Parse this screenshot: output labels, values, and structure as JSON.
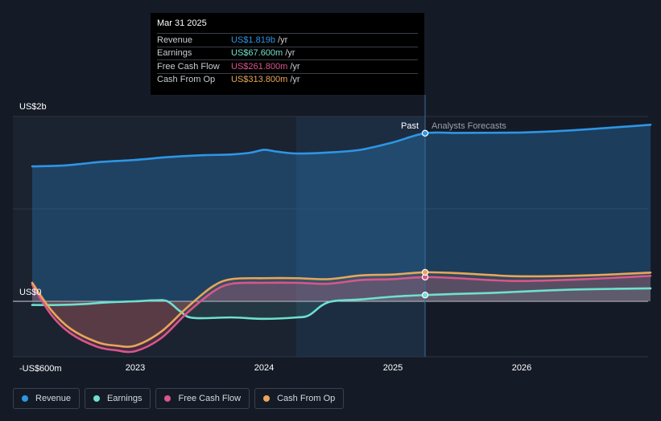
{
  "tooltip": {
    "date": "Mar 31 2025",
    "rows": [
      {
        "label": "Revenue",
        "value": "US$1.819b",
        "unit": "/yr",
        "color": "#2d96e6"
      },
      {
        "label": "Earnings",
        "value": "US$67.600m",
        "unit": "/yr",
        "color": "#6fe0cf"
      },
      {
        "label": "Free Cash Flow",
        "value": "US$261.800m",
        "unit": "/yr",
        "color": "#d9568a"
      },
      {
        "label": "Cash From Op",
        "value": "US$313.800m",
        "unit": "/yr",
        "color": "#e8a65a"
      }
    ]
  },
  "markers": {
    "past": "Past",
    "forecast": "Analysts Forecasts"
  },
  "legend": [
    {
      "label": "Revenue",
      "color": "#2d96e6"
    },
    {
      "label": "Earnings",
      "color": "#6fe0cf"
    },
    {
      "label": "Free Cash Flow",
      "color": "#d9568a"
    },
    {
      "label": "Cash From Op",
      "color": "#e8a65a"
    }
  ],
  "chart_data": {
    "type": "line",
    "title": "",
    "units": "US$ millions",
    "ylim": [
      -600,
      2000
    ],
    "y_tick_labels": [
      {
        "value": 2000,
        "label": "US$2b"
      },
      {
        "value": 0,
        "label": "US$0"
      },
      {
        "value": -600,
        "label": "-US$600m"
      }
    ],
    "xlim": [
      2022.0,
      2027.0
    ],
    "x_tick_labels": [
      {
        "value": 2023,
        "label": "2023"
      },
      {
        "value": 2024,
        "label": "2024"
      },
      {
        "value": 2025,
        "label": "2025"
      },
      {
        "value": 2026,
        "label": "2026"
      }
    ],
    "highlight_range": [
      2024.25,
      2025.25
    ],
    "past_end": 2025.25,
    "series": [
      {
        "name": "Revenue",
        "color": "#2d96e6",
        "x": [
          2022.2,
          2022.45,
          2022.6,
          2022.75,
          2023.0,
          2023.25,
          2023.5,
          2023.75,
          2023.9,
          2024.0,
          2024.1,
          2024.25,
          2024.5,
          2024.75,
          2025.0,
          2025.25,
          2025.5,
          2025.75,
          2026.0,
          2026.25,
          2026.5,
          2026.75,
          2027.0
        ],
        "values": [
          1460,
          1470,
          1490,
          1510,
          1530,
          1560,
          1580,
          1590,
          1610,
          1640,
          1620,
          1600,
          1610,
          1640,
          1720,
          1819,
          1822,
          1824,
          1827,
          1840,
          1860,
          1885,
          1910
        ]
      },
      {
        "name": "Earnings",
        "color": "#6fe0cf",
        "x": [
          2022.2,
          2022.4,
          2022.6,
          2022.8,
          2023.0,
          2023.15,
          2023.25,
          2023.35,
          2023.45,
          2023.75,
          2024.0,
          2024.25,
          2024.35,
          2024.5,
          2024.75,
          2025.0,
          2025.25,
          2025.5,
          2025.75,
          2026.0,
          2026.25,
          2026.5,
          2027.0
        ],
        "values": [
          -40,
          -40,
          -30,
          -10,
          0,
          10,
          0,
          -110,
          -180,
          -175,
          -190,
          -175,
          -150,
          -10,
          20,
          50,
          67.6,
          80,
          90,
          105,
          120,
          130,
          140
        ]
      },
      {
        "name": "Free Cash Flow",
        "color": "#d9568a",
        "x": [
          2022.2,
          2022.35,
          2022.5,
          2022.7,
          2022.85,
          2023.0,
          2023.2,
          2023.4,
          2023.6,
          2023.75,
          2024.0,
          2024.25,
          2024.5,
          2024.75,
          2025.0,
          2025.25,
          2025.5,
          2025.75,
          2026.0,
          2026.5,
          2027.0
        ],
        "values": [
          180,
          -150,
          -350,
          -490,
          -530,
          -540,
          -400,
          -130,
          100,
          190,
          200,
          200,
          190,
          230,
          240,
          261.8,
          250,
          230,
          220,
          240,
          275
        ]
      },
      {
        "name": "Cash From Op",
        "color": "#e8a65a",
        "x": [
          2022.2,
          2022.35,
          2022.5,
          2022.7,
          2022.85,
          2023.0,
          2023.2,
          2023.4,
          2023.6,
          2023.75,
          2024.0,
          2024.25,
          2024.5,
          2024.75,
          2025.0,
          2025.25,
          2025.5,
          2025.75,
          2026.0,
          2026.5,
          2027.0
        ],
        "values": [
          200,
          -100,
          -300,
          -440,
          -480,
          -480,
          -330,
          -70,
          160,
          240,
          250,
          250,
          240,
          280,
          290,
          313.8,
          305,
          285,
          270,
          280,
          310
        ]
      }
    ]
  }
}
